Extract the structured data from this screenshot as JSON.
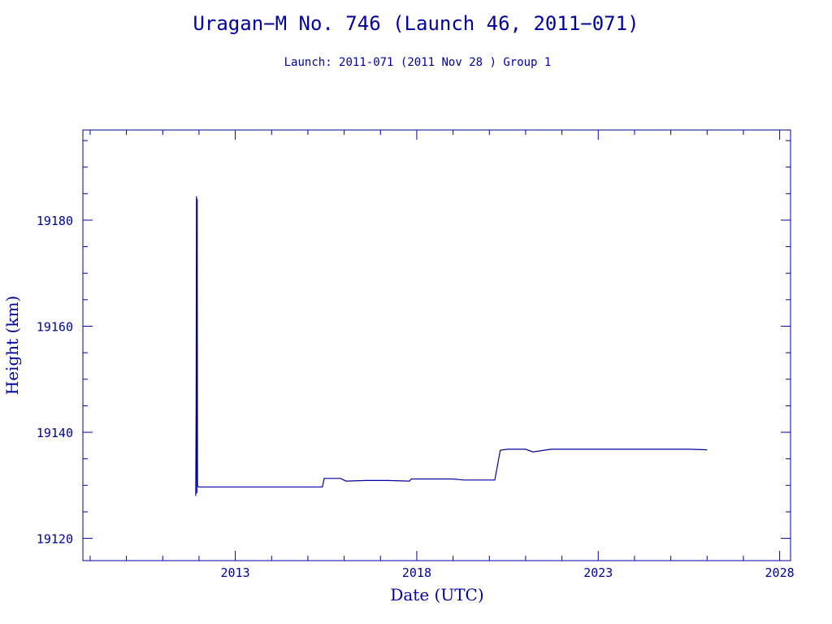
{
  "chart_data": {
    "type": "line",
    "title": "Uragan−M No. 746 (Launch 46, 2011−071)",
    "subtitle": "Launch: 2011-071  (2011 Nov 28 )  Group 1",
    "xlabel": "Date (UTC)",
    "ylabel": "Height (km)",
    "x_ticks": [
      2013,
      2018,
      2023,
      2028
    ],
    "y_ticks": [
      19120,
      19140,
      19160,
      19180
    ],
    "xlim": [
      2008.8,
      2028.3
    ],
    "ylim": [
      19115.8,
      19197
    ],
    "grid": false,
    "color": "#0000a0",
    "series": [
      {
        "x": [
          2011.91,
          2011.92,
          2011.93,
          2011.94,
          2011.95,
          2011.96,
          2011.97,
          2011.98,
          2012.0,
          2012.5,
          2013.5,
          2014.5,
          2015.4,
          2015.45,
          2015.9,
          2016.05,
          2016.6,
          2017.2,
          2017.8,
          2017.85,
          2018.5,
          2019.0,
          2019.3,
          2019.35,
          2019.9,
          2020.15,
          2020.3,
          2020.5,
          2020.8,
          2021.0,
          2021.2,
          2021.4,
          2021.7,
          2022.2,
          2022.8,
          2023.5,
          2024.5,
          2025.5,
          2026.0
        ],
        "y": [
          19128,
          19146,
          19184.5,
          19128.5,
          19184,
          19130,
          19129.8,
          19129.7,
          19129.7,
          19129.7,
          19129.7,
          19129.7,
          19129.7,
          19131.3,
          19131.3,
          19130.8,
          19130.9,
          19130.9,
          19130.8,
          19131.2,
          19131.2,
          19131.2,
          19131,
          19131,
          19131,
          19131,
          19136.6,
          19136.8,
          19136.8,
          19136.8,
          19136.3,
          19136.5,
          19136.8,
          19136.8,
          19136.8,
          19136.8,
          19136.8,
          19136.8,
          19136.7
        ]
      }
    ]
  }
}
